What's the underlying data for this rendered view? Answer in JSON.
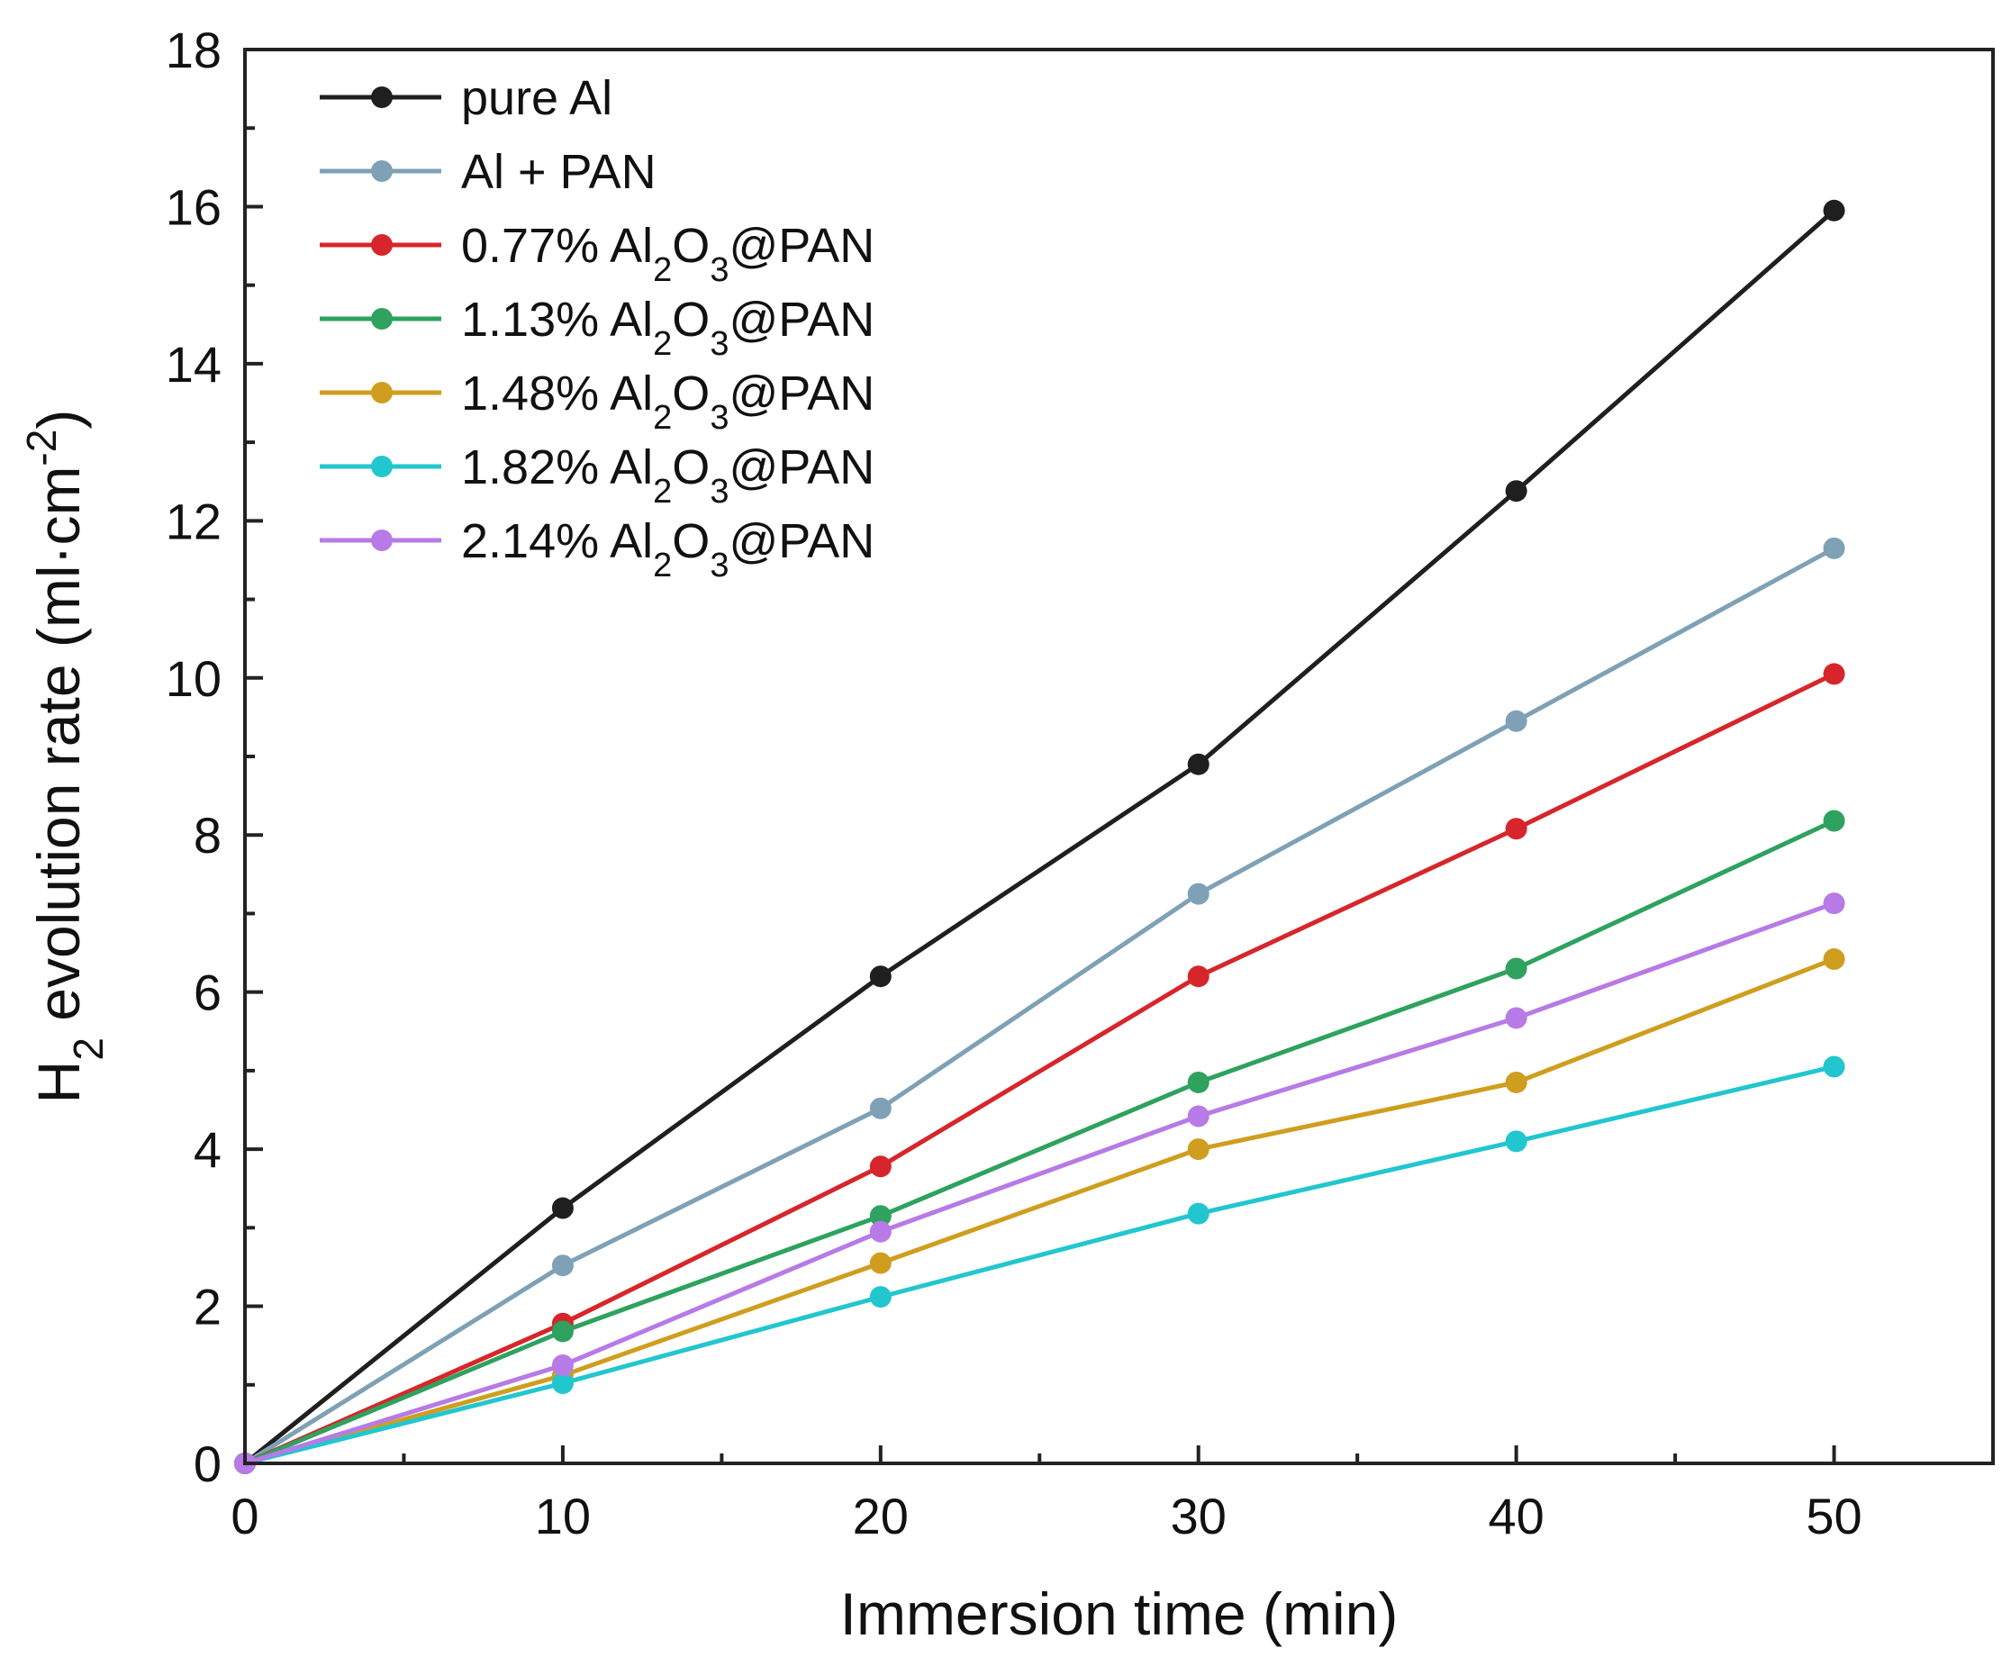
{
  "chart_data": {
    "type": "line",
    "title": "",
    "xlabel": "Immersion time (min)",
    "ylabel": {
      "pre": "H",
      "sub": "2",
      "mid": " evolution rate (ml·cm",
      "sup": "-2",
      "post": ")"
    },
    "xlim": [
      0,
      55
    ],
    "ylim": [
      0,
      18
    ],
    "xticks": [
      0,
      10,
      20,
      30,
      40,
      50
    ],
    "yticks": [
      0,
      2,
      4,
      6,
      8,
      10,
      12,
      14,
      16,
      18
    ],
    "x_minor_step": 5,
    "y_minor_step": 1,
    "grid": false,
    "legend_position": "top-left",
    "x": [
      0,
      10,
      20,
      30,
      40,
      50
    ],
    "series": [
      {
        "name": "pure Al",
        "label_parts": {
          "pre": "pure Al",
          "sub1": "",
          "mid": "",
          "sub2": "",
          "post": ""
        },
        "color": "#1f1f1f",
        "values": [
          0,
          3.25,
          6.2,
          8.9,
          12.38,
          15.95
        ]
      },
      {
        "name": "Al + PAN",
        "label_parts": {
          "pre": "Al + PAN",
          "sub1": "",
          "mid": "",
          "sub2": "",
          "post": ""
        },
        "color": "#7ea1b6",
        "values": [
          0,
          2.52,
          4.52,
          7.25,
          9.45,
          11.65
        ]
      },
      {
        "name": "0.77% Al2O3@PAN",
        "label_parts": {
          "pre": "0.77% Al",
          "sub1": "2",
          "mid": "O",
          "sub2": "3",
          "post": "@PAN"
        },
        "color": "#d7262b",
        "values": [
          0,
          1.78,
          3.78,
          6.2,
          8.08,
          10.05
        ]
      },
      {
        "name": "1.13% Al2O3@PAN",
        "label_parts": {
          "pre": "1.13% Al",
          "sub1": "2",
          "mid": "O",
          "sub2": "3",
          "post": "@PAN"
        },
        "color": "#2ea25e",
        "values": [
          0,
          1.68,
          3.15,
          4.85,
          6.3,
          8.18
        ]
      },
      {
        "name": "1.48% Al2O3@PAN",
        "label_parts": {
          "pre": "1.48% Al",
          "sub1": "2",
          "mid": "O",
          "sub2": "3",
          "post": "@PAN"
        },
        "color": "#cf9e1f",
        "values": [
          0,
          1.12,
          2.55,
          4.0,
          4.85,
          6.42
        ]
      },
      {
        "name": "1.82% Al2O3@PAN",
        "label_parts": {
          "pre": "1.82% Al",
          "sub1": "2",
          "mid": "O",
          "sub2": "3",
          "post": "@PAN"
        },
        "color": "#22c6cf",
        "values": [
          0,
          1.02,
          2.12,
          3.18,
          4.1,
          5.05
        ]
      },
      {
        "name": "2.14% Al2O3@PAN",
        "label_parts": {
          "pre": "2.14% Al",
          "sub1": "2",
          "mid": "O",
          "sub2": "3",
          "post": "@PAN"
        },
        "color": "#b77ae6",
        "values": [
          0,
          1.25,
          2.95,
          4.42,
          5.67,
          7.13
        ]
      }
    ]
  }
}
